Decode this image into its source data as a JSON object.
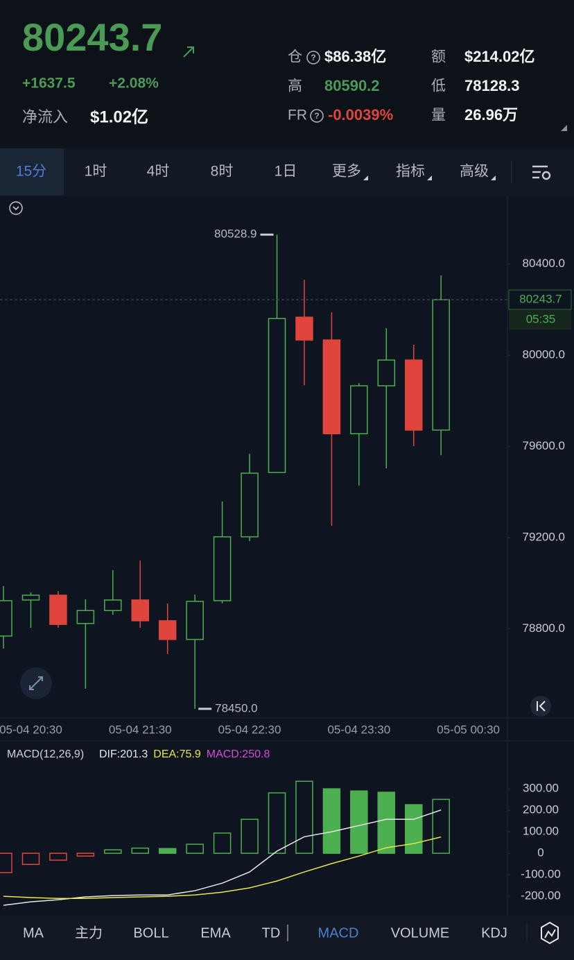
{
  "header": {
    "price": "80243.7",
    "change": "+1637.5",
    "change_pct": "+2.08%",
    "net_inflow_label": "净流入",
    "net_inflow": "$1.02亿",
    "stats": [
      {
        "label": "仓",
        "value": "$86.38亿"
      },
      {
        "label": "额",
        "value": "$214.02亿"
      },
      {
        "label": "高",
        "value": "80590.2"
      },
      {
        "label": "低",
        "value": "78128.3"
      },
      {
        "label": "FR",
        "value": "-0.0039%"
      },
      {
        "label": "量",
        "value": "26.96万"
      }
    ]
  },
  "timeframe_tabs": [
    "15分",
    "1时",
    "4时",
    "8时",
    "1日",
    "更多",
    "指标",
    "高级"
  ],
  "indicator_tabs": [
    "MA",
    "主力",
    "BOLL",
    "EMA",
    "TD",
    "MACD",
    "VOLUME",
    "KDJ"
  ],
  "chart_data": [
    {
      "type": "candlestick",
      "categories": [
        null,
        "05-04 20:30",
        null,
        null,
        null,
        "05-04 21:30",
        null,
        null,
        null,
        "05-04 22:30",
        null,
        null,
        null,
        "05-04 23:30",
        null,
        null,
        null,
        "05-05 00:30"
      ],
      "open": [
        78769,
        78927,
        78948,
        78824,
        78881,
        78927,
        78836,
        78754,
        78924,
        79204,
        79486,
        80167,
        80067,
        79656,
        79866,
        79979,
        79672,
        null
      ],
      "high": [
        78988,
        78960,
        78966,
        78930,
        79058,
        79100,
        78912,
        78951,
        79359,
        79568,
        80528.9,
        80331,
        80188,
        79878,
        80119,
        80046,
        80350,
        null
      ],
      "low": [
        78714,
        78805,
        78805,
        78538,
        78863,
        78805,
        78690,
        78450,
        78912,
        79185,
        79486,
        79869,
        79252,
        79428,
        79504,
        79602,
        79562,
        null
      ],
      "close": [
        78924,
        78948,
        78820,
        78881,
        78927,
        78836,
        78754,
        78921,
        79204,
        79483,
        80161,
        80067,
        79656,
        79866,
        79979,
        79672,
        80243.7,
        null
      ],
      "up_color": "#4caf50",
      "down_color": "#e0453d",
      "grid": false,
      "ylim": [
        78410,
        80700
      ],
      "yticks": [
        {
          "value": 80400,
          "label": "80400.0"
        },
        {
          "value": 80000,
          "label": "80000.0"
        },
        {
          "value": 79600,
          "label": "79600.0"
        },
        {
          "value": 79200,
          "label": "79200.0"
        },
        {
          "value": 78800,
          "label": "78800.0"
        }
      ],
      "annotations": [
        80528.9,
        {
          "value": 78450,
          "label": "78450.0"
        }
      ],
      "last_price": 80243.7,
      "countdown": "05:35"
    },
    {
      "type": "macd",
      "title": "MACD(12,26,9)",
      "legend": [
        {
          "text": "DIF:201.3",
          "color": "#e8e8e8"
        },
        {
          "text": "DEA:75.9",
          "color": "#e8e84a"
        },
        {
          "text": "MACD:250.8",
          "color": "#d84ad8"
        }
      ],
      "histogram": {
        "values": [
          -90,
          -52,
          -32,
          -13,
          16,
          24,
          22,
          42,
          94,
          158,
          281,
          335,
          300,
          290,
          284,
          226,
          250.8
        ],
        "up_color": "#4caf50",
        "down_color": "#e0453d"
      },
      "series": [
        {
          "color": "#e8e8e8",
          "values": [
            -242,
            -226,
            -216,
            -203,
            -197,
            -194,
            -194,
            -174,
            -139,
            -87,
            10,
            77,
            100,
            129,
            158,
            158,
            201.3
          ]
        },
        {
          "color": "#e8e84a",
          "values": [
            -200,
            -206,
            -210,
            -210,
            -206,
            -203,
            -200,
            -194,
            -181,
            -161,
            -129,
            -87,
            -48,
            -13,
            26,
            45,
            75.9
          ]
        }
      ],
      "ylim": [
        -290,
        420
      ],
      "yticks": [
        {
          "value": 300,
          "label": "300.00"
        },
        {
          "value": 200,
          "label": "200.00"
        },
        {
          "value": 100,
          "label": "100.00"
        },
        0,
        {
          "value": -100,
          "label": "-100.00"
        },
        {
          "value": -200,
          "label": "-200.00"
        }
      ]
    }
  ]
}
